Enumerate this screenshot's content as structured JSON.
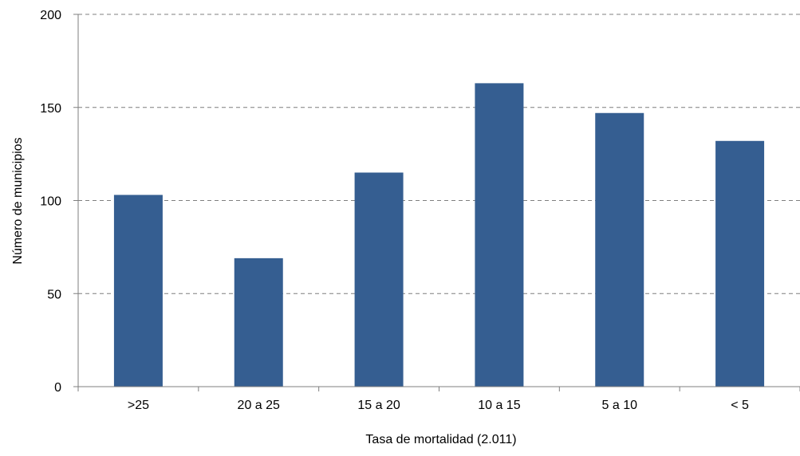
{
  "chart_data": {
    "type": "bar",
    "title": "",
    "xlabel": "Tasa de mortalidad (2.011)",
    "ylabel": "Número de municipios",
    "categories": [
      ">25",
      "20 a 25",
      "15 a 20",
      "10 a 15",
      "5 a 10",
      "< 5"
    ],
    "values": [
      103,
      69,
      115,
      163,
      147,
      132
    ],
    "ylim": [
      0,
      200
    ],
    "yticks": [
      0,
      50,
      100,
      150,
      200
    ],
    "grid": "horizontal dashed",
    "legend": "none",
    "bar_color": "#355E91",
    "grid_color": "#7F7F7F",
    "axis_color": "#7F7F7F"
  }
}
